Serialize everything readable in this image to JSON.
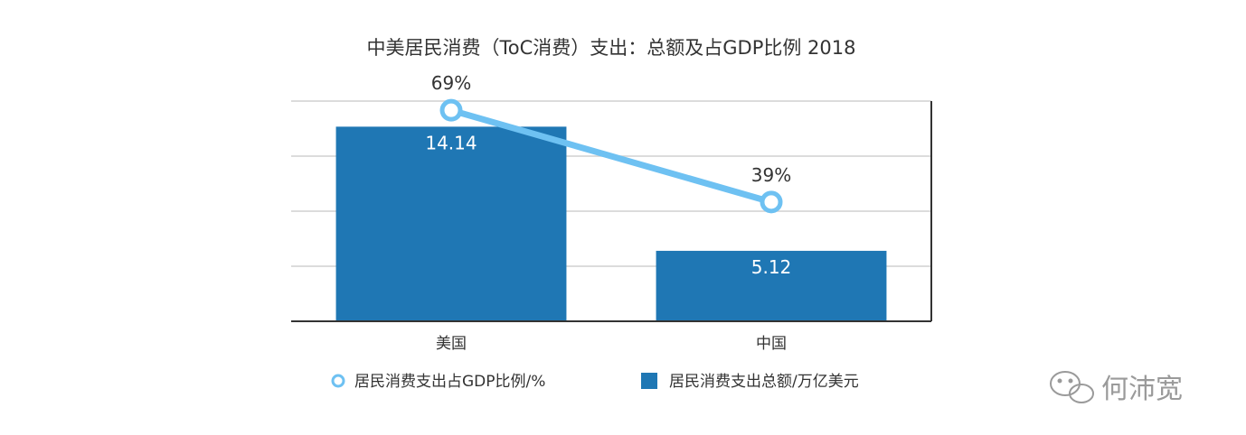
{
  "chart_data": {
    "type": "bar",
    "title": "中美居民消费（ToC消费）支出：总额及占GDP比例  2018",
    "categories": [
      "美国",
      "中国"
    ],
    "series": [
      {
        "name": "居民消费支出总额/万亿美元",
        "type": "bar",
        "values": [
          14.14,
          5.12
        ],
        "labels": [
          "14.14",
          "5.12"
        ],
        "color": "#1f77b4"
      },
      {
        "name": "居民消费支出占GDP比例/%",
        "type": "line",
        "values": [
          69,
          39
        ],
        "labels": [
          "69%",
          "39%"
        ],
        "color": "#6ec1f2"
      }
    ],
    "bar_axis_max": 16,
    "line_axis_max": 72,
    "line_axis_min": 0,
    "grid": true,
    "legend_position": "bottom"
  },
  "watermark": {
    "text": "何沛宽",
    "icon": "wechat-icon"
  }
}
